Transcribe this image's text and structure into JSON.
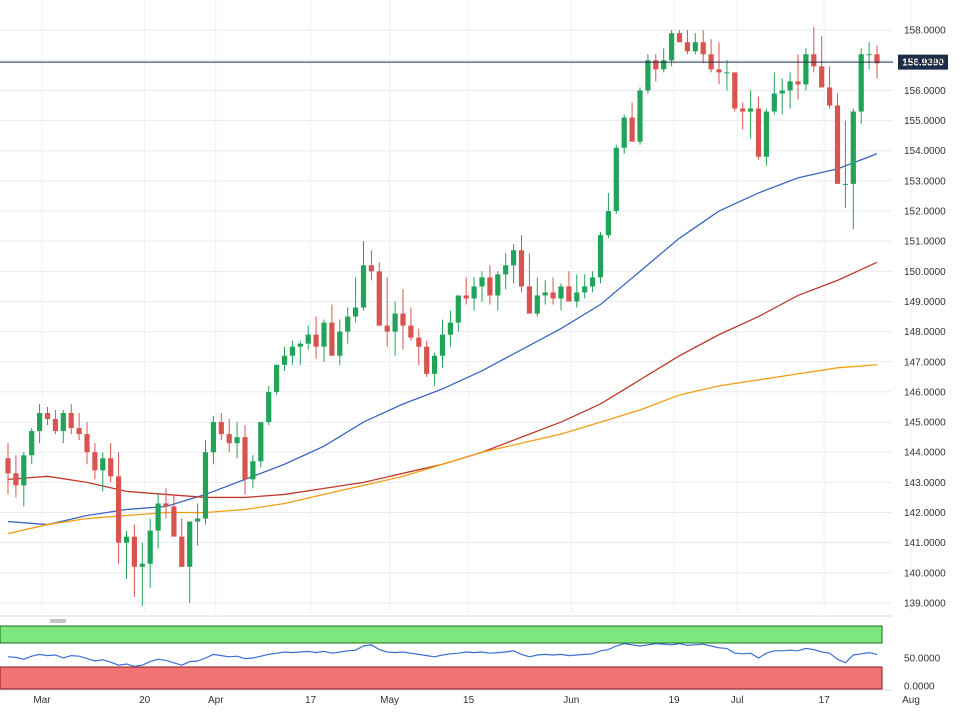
{
  "chart_data": [
    {
      "type": "candlestick",
      "title": "",
      "xlabel": "",
      "ylabel": "",
      "ylim": [
        138.7,
        159.0
      ],
      "grid": true,
      "ytick_values": [
        139,
        140,
        141,
        142,
        143,
        144,
        145,
        146,
        147,
        148,
        149,
        150,
        151,
        152,
        153,
        154,
        155,
        156,
        157,
        158
      ],
      "ytick_labels": [
        "139.0000",
        "140.0000",
        "141.0000",
        "142.0000",
        "143.0000",
        "144.0000",
        "145.0000",
        "146.0000",
        "147.0000",
        "148.0000",
        "149.0000",
        "150.0000",
        "151.0000",
        "152.0000",
        "153.0000",
        "154.0000",
        "155.0000",
        "156.0000",
        "157.0000",
        "158.0000"
      ],
      "xtick_labels": [
        {
          "label": "Mar",
          "day": 0
        },
        {
          "label": "20",
          "day": 13
        },
        {
          "label": "Apr",
          "day": 22
        },
        {
          "label": "17",
          "day": 34
        },
        {
          "label": "May",
          "day": 44
        },
        {
          "label": "15",
          "day": 54
        },
        {
          "label": "Jun",
          "day": 67
        },
        {
          "label": "19",
          "day": 80
        },
        {
          "label": "Jul",
          "day": 88
        },
        {
          "label": "17",
          "day": 99
        },
        {
          "label": "Aug",
          "day": 110
        }
      ],
      "current_price": {
        "value": 156.939,
        "label": "156.9390"
      },
      "candles": {
        "open": [
          143.8,
          143.3,
          142.9,
          143.9,
          144.7,
          145.3,
          145.1,
          144.7,
          145.3,
          144.8,
          144.6,
          144.0,
          143.4,
          143.8,
          143.2,
          141.0,
          141.2,
          140.2,
          140.3,
          141.4,
          142.3,
          142.2,
          141.2,
          140.2,
          141.7,
          141.8,
          144.0,
          145.0,
          144.6,
          144.3,
          144.5,
          143.1,
          143.7,
          145.0,
          146.0,
          146.9,
          147.2,
          147.5,
          147.6,
          147.9,
          147.5,
          148.3,
          147.2,
          148.0,
          148.5,
          148.8,
          150.2,
          150.0,
          148.2,
          148.0,
          148.6,
          148.2,
          147.8,
          147.5,
          146.6,
          147.2,
          147.9,
          148.3,
          149.2,
          149.1,
          149.5,
          149.8,
          149.2,
          149.9,
          150.2,
          150.7,
          149.5,
          148.6,
          149.2,
          149.3,
          149.1,
          149.5,
          149.0,
          149.3,
          149.5,
          149.8,
          151.2,
          152.0,
          154.1,
          155.1,
          154.3,
          156.0,
          157.0,
          156.7,
          157.0,
          157.9,
          157.6,
          157.3,
          157.6,
          157.2,
          156.7,
          156.6,
          156.6,
          155.4,
          155.3,
          155.4,
          153.8,
          155.3,
          155.9,
          156.0,
          156.3,
          156.2,
          157.2,
          156.8,
          156.1,
          155.5,
          152.9,
          152.9,
          155.3,
          157.2,
          157.2
        ],
        "high": [
          144.3,
          143.9,
          144.0,
          144.8,
          145.6,
          145.5,
          145.4,
          145.4,
          145.6,
          145.3,
          145.0,
          144.3,
          144.0,
          144.3,
          144.0,
          141.4,
          141.6,
          141.0,
          141.8,
          142.6,
          142.8,
          142.6,
          141.8,
          141.6,
          142.3,
          144.4,
          145.2,
          145.3,
          145.1,
          145.0,
          144.9,
          143.9,
          144.9,
          146.2,
          146.9,
          147.5,
          147.7,
          147.7,
          148.2,
          148.5,
          148.4,
          148.9,
          148.4,
          148.8,
          149.8,
          151.0,
          150.7,
          150.3,
          149.8,
          149.0,
          149.4,
          148.8,
          148.1,
          147.7,
          147.3,
          148.4,
          148.7,
          149.2,
          149.8,
          149.8,
          150.0,
          150.2,
          150.0,
          150.6,
          150.9,
          151.2,
          150.6,
          149.8,
          149.7,
          149.8,
          149.6,
          150.0,
          149.9,
          149.9,
          150.0,
          151.3,
          152.6,
          154.2,
          155.2,
          155.6,
          156.1,
          157.2,
          157.2,
          157.4,
          158.0,
          158.0,
          158.0,
          157.9,
          158.0,
          157.7,
          157.6,
          157.0,
          156.4,
          155.6,
          156.0,
          155.8,
          155.4,
          156.6,
          156.4,
          156.6,
          157.2,
          157.4,
          158.1,
          157.8,
          156.8,
          155.9,
          155.0,
          155.4,
          157.4,
          157.6,
          157.5
        ],
        "low": [
          142.6,
          142.5,
          142.2,
          143.6,
          144.3,
          144.9,
          144.6,
          144.3,
          144.6,
          144.4,
          143.6,
          143.1,
          142.7,
          143.0,
          140.3,
          139.8,
          139.2,
          138.9,
          139.5,
          140.8,
          141.8,
          141.7,
          140.3,
          139.0,
          140.9,
          141.6,
          143.6,
          144.4,
          144.0,
          143.8,
          142.6,
          142.8,
          143.5,
          144.9,
          145.9,
          146.7,
          146.9,
          146.9,
          147.4,
          147.1,
          147.0,
          147.2,
          146.9,
          147.6,
          148.3,
          148.7,
          149.7,
          148.2,
          147.5,
          147.2,
          147.4,
          147.7,
          146.9,
          146.5,
          146.2,
          146.8,
          147.5,
          148.0,
          148.9,
          148.7,
          149.0,
          148.9,
          148.7,
          149.4,
          149.6,
          149.3,
          148.8,
          148.5,
          148.9,
          148.9,
          148.7,
          149.3,
          148.8,
          149.1,
          149.3,
          149.6,
          151.1,
          151.9,
          153.9,
          154.8,
          154.2,
          155.9,
          156.3,
          156.6,
          156.8,
          157.6,
          157.2,
          157.2,
          156.9,
          156.6,
          156.2,
          156.0,
          155.3,
          154.7,
          154.4,
          153.7,
          153.5,
          155.2,
          155.2,
          155.4,
          155.7,
          156.0,
          156.6,
          156.3,
          155.4,
          155.1,
          152.1,
          151.4,
          154.9,
          156.7,
          156.4
        ],
        "close": [
          143.3,
          142.9,
          143.9,
          144.7,
          145.3,
          145.1,
          144.7,
          145.3,
          144.8,
          144.6,
          144.0,
          143.4,
          143.8,
          143.2,
          141.0,
          141.2,
          140.2,
          140.3,
          141.4,
          142.3,
          142.2,
          141.2,
          140.2,
          141.7,
          141.8,
          144.0,
          145.0,
          144.6,
          144.3,
          144.5,
          143.1,
          143.7,
          145.0,
          146.0,
          146.9,
          147.2,
          147.5,
          147.6,
          147.9,
          147.5,
          148.3,
          147.2,
          148.0,
          148.5,
          148.8,
          150.2,
          150.0,
          148.2,
          148.0,
          148.6,
          148.2,
          147.8,
          147.5,
          146.6,
          147.2,
          147.9,
          148.3,
          149.2,
          149.1,
          149.5,
          149.8,
          149.2,
          149.9,
          150.2,
          150.7,
          149.5,
          148.6,
          149.2,
          149.3,
          149.1,
          149.5,
          149.0,
          149.3,
          149.5,
          149.8,
          151.2,
          152.0,
          154.1,
          155.1,
          154.3,
          156.0,
          157.0,
          156.7,
          157.0,
          157.9,
          157.6,
          157.3,
          157.6,
          157.2,
          156.7,
          156.6,
          156.6,
          155.4,
          155.3,
          155.4,
          153.8,
          155.3,
          155.9,
          156.0,
          156.3,
          156.2,
          157.2,
          156.8,
          156.1,
          155.5,
          152.9,
          152.9,
          155.3,
          157.2,
          157.2,
          156.9
        ]
      },
      "series": [
        {
          "color": "#3a66c4",
          "x": [
            0,
            5,
            10,
            15,
            20,
            25,
            30,
            35,
            40,
            45,
            50,
            55,
            60,
            65,
            70,
            75,
            80,
            85,
            90,
            95,
            100,
            105,
            110
          ],
          "values": [
            141.7,
            141.6,
            141.9,
            142.1,
            142.2,
            142.6,
            143.1,
            143.6,
            144.2,
            145.0,
            145.6,
            146.1,
            146.7,
            147.4,
            148.1,
            148.9,
            150.0,
            151.1,
            152.0,
            152.6,
            153.1,
            153.4,
            153.9
          ]
        },
        {
          "color": "#c0392b",
          "x": [
            0,
            5,
            10,
            15,
            20,
            25,
            30,
            35,
            40,
            45,
            50,
            55,
            60,
            65,
            70,
            75,
            80,
            85,
            90,
            95,
            100,
            105,
            110
          ],
          "values": [
            143.1,
            143.2,
            143.0,
            142.7,
            142.6,
            142.5,
            142.5,
            142.6,
            142.8,
            143.0,
            143.3,
            143.6,
            144.0,
            144.5,
            145.0,
            145.6,
            146.4,
            147.2,
            147.9,
            148.5,
            149.2,
            149.7,
            150.3
          ]
        },
        {
          "color": "#f39c12",
          "x": [
            0,
            5,
            10,
            15,
            20,
            25,
            30,
            35,
            40,
            45,
            50,
            55,
            60,
            65,
            70,
            75,
            80,
            85,
            90,
            95,
            100,
            105,
            110
          ],
          "values": [
            141.3,
            141.6,
            141.8,
            141.9,
            142.0,
            142.0,
            142.1,
            142.3,
            142.6,
            142.9,
            143.2,
            143.6,
            144.0,
            144.3,
            144.6,
            145.0,
            145.4,
            145.9,
            146.2,
            146.4,
            146.6,
            146.8,
            146.9
          ]
        }
      ],
      "colors": {
        "up": "#21a35a",
        "down": "#d9534f",
        "price_line": "#1b2c4a"
      }
    },
    {
      "type": "line",
      "title": "",
      "ylim": [
        0,
        100
      ],
      "ytick_values": [
        50,
        0
      ],
      "ytick_labels": [
        "50.0000",
        "0.0000"
      ],
      "overbought_zone_color": "#7ee87e",
      "oversold_zone_color": "#f37474",
      "series": [
        {
          "color": "#3a6fd8",
          "values": [
            52,
            51,
            48,
            53,
            56,
            54,
            55,
            50,
            54,
            53,
            49,
            45,
            47,
            43,
            38,
            40,
            36,
            38,
            44,
            48,
            46,
            42,
            38,
            44,
            45,
            50,
            56,
            54,
            52,
            53,
            49,
            50,
            53,
            56,
            58,
            60,
            59,
            60,
            61,
            59,
            61,
            58,
            60,
            62,
            63,
            70,
            72,
            64,
            60,
            59,
            60,
            58,
            56,
            54,
            52,
            55,
            57,
            58,
            60,
            59,
            60,
            58,
            59,
            60,
            62,
            56,
            52,
            55,
            56,
            55,
            56,
            54,
            55,
            56,
            57,
            62,
            64,
            70,
            74,
            72,
            70,
            72,
            74,
            73,
            72,
            74,
            71,
            72,
            73,
            70,
            67,
            66,
            58,
            57,
            58,
            50,
            58,
            62,
            62,
            63,
            62,
            66,
            64,
            60,
            58,
            48,
            42,
            55,
            57,
            59,
            56
          ]
        }
      ]
    }
  ]
}
